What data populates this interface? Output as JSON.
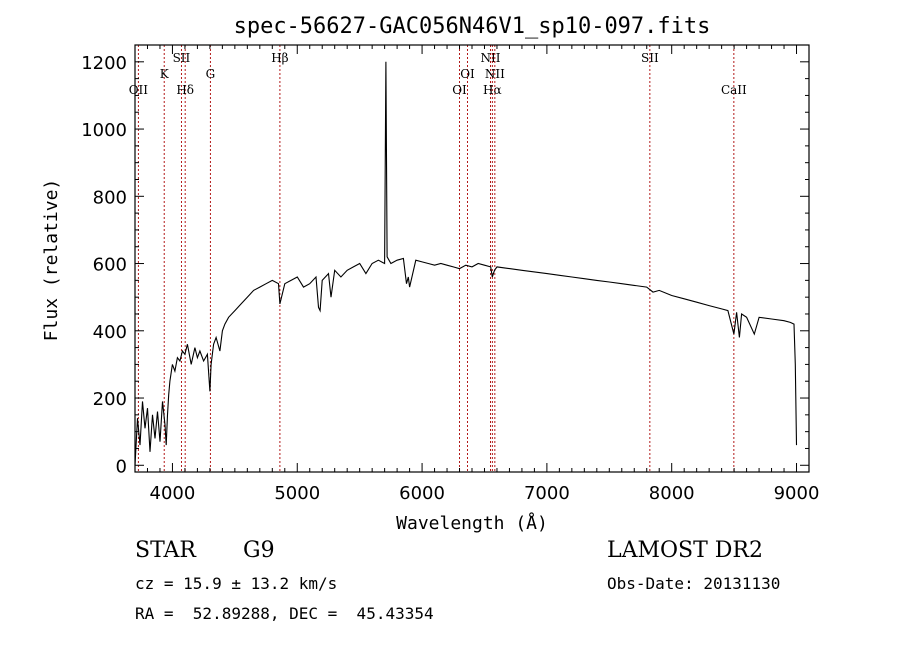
{
  "chart_data": {
    "type": "line",
    "title": "spec-56627-GAC056N46V1_sp10-097.fits",
    "xlabel": "Wavelength (Å)",
    "ylabel": "Flux (relative)",
    "xlim": [
      3700,
      9100
    ],
    "ylim": [
      -20,
      1250
    ],
    "xticks": [
      4000,
      5000,
      6000,
      7000,
      8000,
      9000
    ],
    "yticks": [
      0,
      200,
      400,
      600,
      800,
      1000,
      1200
    ],
    "xtick_labels": [
      "4000",
      "5000",
      "6000",
      "7000",
      "8000",
      "9000"
    ],
    "ytick_labels": [
      "0",
      "200",
      "400",
      "600",
      "800",
      "1000",
      "1200"
    ],
    "grid": false,
    "series": [
      {
        "x": [
          3700,
          3720,
          3740,
          3760,
          3780,
          3800,
          3820,
          3840,
          3860,
          3880,
          3900,
          3920,
          3940,
          3950,
          3960,
          3970,
          3980,
          4000,
          4020,
          4040,
          4060,
          4080,
          4100,
          4120,
          4150,
          4180,
          4200,
          4220,
          4250,
          4280,
          4300,
          4310,
          4330,
          4350,
          4380,
          4400,
          4420,
          4450,
          4500,
          4550,
          4600,
          4650,
          4700,
          4750,
          4800,
          4850,
          4861,
          4900,
          4950,
          5000,
          5050,
          5100,
          5150,
          5170,
          5183,
          5200,
          5250,
          5270,
          5300,
          5350,
          5400,
          5450,
          5500,
          5550,
          5600,
          5650,
          5700,
          5710,
          5720,
          5750,
          5800,
          5850,
          5875,
          5890,
          5900,
          5950,
          6000,
          6050,
          6100,
          6150,
          6200,
          6250,
          6300,
          6350,
          6400,
          6450,
          6500,
          6550,
          6563,
          6580,
          6600,
          6700,
          6800,
          6900,
          7000,
          7100,
          7200,
          7300,
          7400,
          7500,
          7600,
          7700,
          7800,
          7850,
          7900,
          8000,
          8100,
          8200,
          8300,
          8400,
          8450,
          8498,
          8520,
          8542,
          8560,
          8600,
          8662,
          8700,
          8800,
          8900,
          8950,
          8980,
          8990,
          9000
        ],
        "y": [
          0,
          140,
          60,
          190,
          110,
          170,
          40,
          150,
          80,
          160,
          70,
          190,
          120,
          60,
          150,
          210,
          250,
          300,
          280,
          320,
          310,
          340,
          330,
          360,
          300,
          350,
          320,
          340,
          310,
          330,
          220,
          300,
          360,
          380,
          340,
          400,
          420,
          440,
          460,
          480,
          500,
          520,
          530,
          540,
          550,
          540,
          480,
          540,
          550,
          560,
          530,
          540,
          560,
          470,
          460,
          550,
          570,
          500,
          580,
          560,
          580,
          590,
          600,
          570,
          600,
          610,
          600,
          1200,
          620,
          600,
          610,
          615,
          540,
          560,
          530,
          610,
          605,
          600,
          595,
          600,
          595,
          590,
          585,
          595,
          590,
          600,
          595,
          590,
          560,
          580,
          590,
          585,
          580,
          575,
          570,
          565,
          560,
          555,
          550,
          545,
          540,
          535,
          530,
          515,
          520,
          505,
          495,
          485,
          475,
          465,
          460,
          390,
          455,
          380,
          450,
          440,
          390,
          440,
          435,
          430,
          425,
          420,
          300,
          60
        ]
      }
    ],
    "lines": [
      {
        "label": "OII",
        "x": 3727
      },
      {
        "label": "K",
        "x": 3934
      },
      {
        "label": "SII",
        "x": 4072
      },
      {
        "label": "Hδ",
        "x": 4102
      },
      {
        "label": "G",
        "x": 4304
      },
      {
        "label": "Hβ",
        "x": 4861
      },
      {
        "label": "OI",
        "x": 6300
      },
      {
        "label": "OI",
        "x": 6364
      },
      {
        "label": "NII",
        "x": 6548
      },
      {
        "label": "Hα",
        "x": 6563
      },
      {
        "label": "NII",
        "x": 6583
      },
      {
        "label": "SII",
        "x": 7825
      },
      {
        "label": "CaII",
        "x": 8498
      }
    ],
    "line_color": "#000000",
    "marker_color": "#aa0000"
  },
  "info": {
    "class": "STAR",
    "subclass": "G9",
    "survey": "LAMOST DR2",
    "cz": "cz = 15.9 ± 13.2 km/s",
    "obs_date": "Obs-Date: 20131130",
    "radec": "RA =  52.89288, DEC =  45.43354"
  }
}
